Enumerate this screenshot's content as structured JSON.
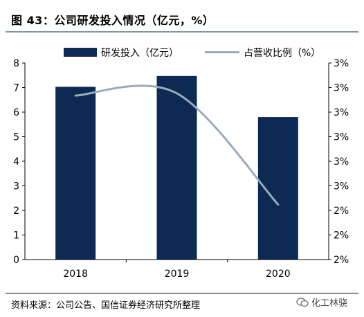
{
  "header": {
    "title": "图 43：公司研发投入情况（亿元，%）"
  },
  "footer": {
    "source": "资料来源：公司公告、国信证券经济研究所整理",
    "watermark": "化工林骁"
  },
  "chart_data": {
    "type": "bar",
    "categories": [
      "2018",
      "2019",
      "2020"
    ],
    "series": [
      {
        "name": "研发投入（亿元）",
        "type": "bar",
        "axis": "left",
        "values": [
          7.03,
          7.47,
          5.8
        ],
        "color": "#0d2a54"
      },
      {
        "name": "占营收比例（%）",
        "type": "line",
        "axis": "right",
        "values": [
          3.46,
          3.48,
          2.49
        ],
        "color": "#9aabbd"
      }
    ],
    "y_left": {
      "ylim": [
        0,
        8
      ],
      "ticks": [
        "0",
        "1",
        "2",
        "3",
        "4",
        "5",
        "6",
        "7",
        "8"
      ]
    },
    "y_right": {
      "ylim": [
        2.0,
        3.75
      ],
      "ticks": [
        "2%",
        "2%",
        "2%",
        "3%",
        "3%",
        "3%",
        "3%",
        "3%",
        "3%"
      ]
    },
    "legend_position": "top",
    "grid": false
  }
}
